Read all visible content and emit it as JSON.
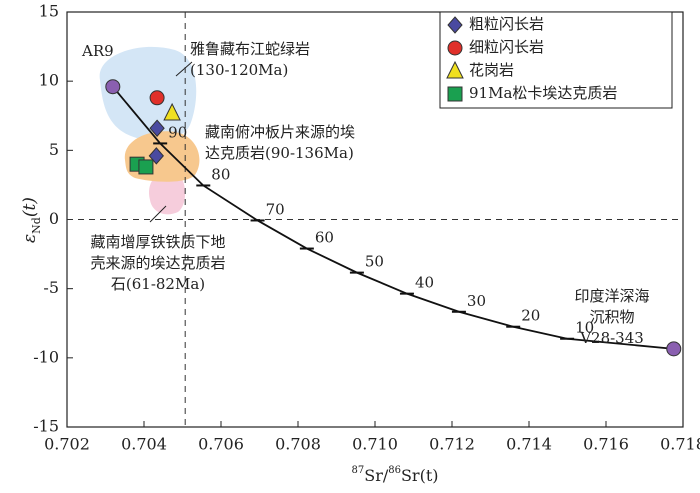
{
  "chart_data": {
    "type": "scatter",
    "x_label": [
      "87",
      "Sr/",
      "86",
      "Sr(t)"
    ],
    "y_label": [
      "ε",
      "Nd",
      "(t)"
    ],
    "xlim": [
      0.702,
      0.718
    ],
    "ylim": [
      -15,
      15
    ],
    "xticks": [
      0.702,
      0.704,
      0.706,
      0.708,
      {
        "value": 0.71,
        "label": "0.710"
      },
      0.712,
      0.714,
      0.716,
      0.718
    ],
    "yticks": [
      15,
      10,
      5,
      0,
      -5,
      -10,
      -15
    ],
    "vline": 0.70507,
    "hline": 0,
    "series": [
      {
        "name": "粗粒闪长岩",
        "color": "#4a4aa0",
        "marker": "diamond",
        "x": [
          0.70434,
          0.70432
        ],
        "y": [
          6.6,
          4.6
        ]
      },
      {
        "name": "细粒闪长岩",
        "color": "#e0302a",
        "marker": "circle",
        "x": [
          0.70434
        ],
        "y": [
          8.8
        ]
      },
      {
        "name": "花岗岩",
        "color": "#f0e020",
        "marker": "triangle",
        "x": [
          0.70473
        ],
        "y": [
          7.7
        ]
      },
      {
        "name": "91Ma松卡埃达克质岩",
        "color": "#1aa050",
        "marker": "square",
        "x": [
          0.70382,
          0.70405
        ],
        "y": [
          4.0,
          3.8
        ]
      }
    ],
    "curve": {
      "color": "#111",
      "x": [
        0.70319,
        0.70442,
        0.70554,
        0.70695,
        0.70823,
        0.70953,
        0.71083,
        0.71218,
        0.71359,
        0.71499,
        0.71776
      ],
      "y": [
        9.6,
        5.5,
        2.46,
        -0.07,
        -2.1,
        -3.84,
        -5.36,
        -6.67,
        -7.75,
        -8.62,
        -9.35
      ],
      "labels": [
        null,
        90,
        80,
        70,
        60,
        50,
        40,
        30,
        20,
        10,
        null
      ],
      "end_color": "#8a5fb0"
    },
    "annotations": [
      [
        "AR9"
      ],
      [
        "雅鲁藏布江蛇绿岩",
        "(130-120Ma)"
      ],
      [
        "藏南俯冲板片来源的埃",
        "达克质岩(90-136Ma)"
      ],
      [
        "藏南增厚铁铁质下地",
        "壳来源的埃达克质岩",
        "石(61-82Ma)"
      ],
      [
        "印度洋深海",
        "沉积物",
        "V28-343"
      ]
    ]
  }
}
